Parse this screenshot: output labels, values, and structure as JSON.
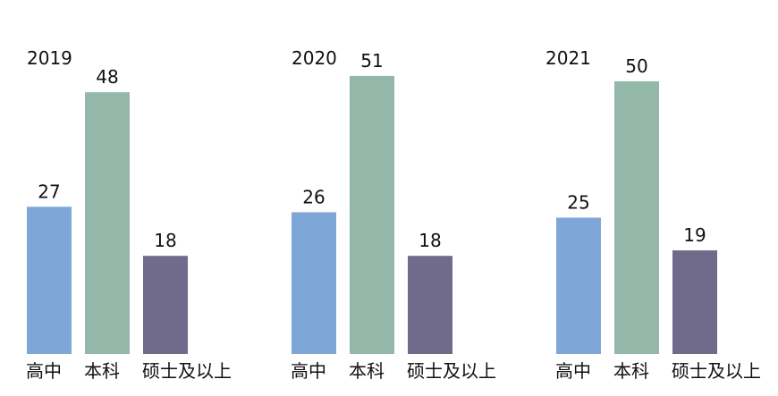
{
  "chart_data": [
    {
      "type": "bar",
      "title": "2019",
      "categories": [
        "高中",
        "本科",
        "硕士及以上"
      ],
      "values": [
        27,
        48,
        18
      ],
      "colors": [
        "#7ea7d8",
        "#93b8aa",
        "#706b8b"
      ],
      "ylim": [
        0,
        55
      ],
      "grid": false,
      "legend": "none"
    },
    {
      "type": "bar",
      "title": "2020",
      "categories": [
        "高中",
        "本科",
        "硕士及以上"
      ],
      "values": [
        26,
        51,
        18
      ],
      "colors": [
        "#7ea7d8",
        "#93b8aa",
        "#706b8b"
      ],
      "ylim": [
        0,
        55
      ],
      "grid": false,
      "legend": "none"
    },
    {
      "type": "bar",
      "title": "2021",
      "categories": [
        "高中",
        "本科",
        "硕士及以上"
      ],
      "values": [
        25,
        50,
        19
      ],
      "colors": [
        "#7ea7d8",
        "#93b8aa",
        "#706b8b"
      ],
      "ylim": [
        0,
        55
      ],
      "grid": false,
      "legend": "none"
    }
  ]
}
